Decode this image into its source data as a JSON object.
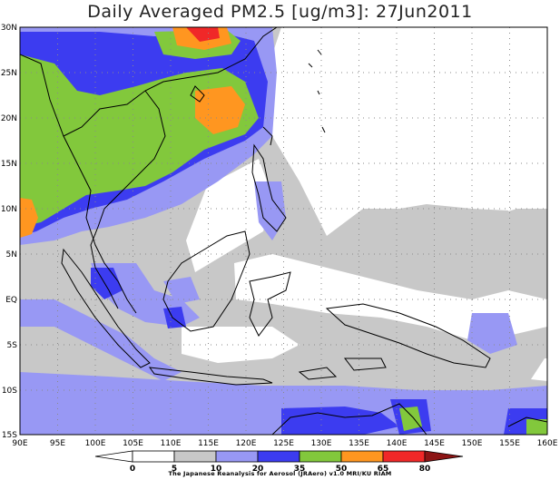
{
  "title": "Daily Averaged PM2.5 [ug/m3]: 27Jun2011",
  "map": {
    "lon_ticks": [
      "90E",
      "95E",
      "100E",
      "105E",
      "110E",
      "115E",
      "120E",
      "125E",
      "130E",
      "135E",
      "140E",
      "145E",
      "150E",
      "155E",
      "160E"
    ],
    "lat_ticks": [
      "30N",
      "25N",
      "20N",
      "15N",
      "10N",
      "5N",
      "EQ",
      "5S",
      "10S",
      "15S"
    ],
    "lon_range": [
      90,
      160
    ],
    "lat_range": [
      -15,
      30
    ],
    "grid": true
  },
  "legend": {
    "levels": [
      "0",
      "5",
      "10",
      "20",
      "35",
      "50",
      "65",
      "80"
    ],
    "colors": [
      "#ffffff",
      "#c8c8c8",
      "#9898f4",
      "#3c3cf0",
      "#82c83c",
      "#ff9620",
      "#f02828",
      "#8c1414"
    ]
  },
  "credit": "The Japanese Reanalysis for Aerosol (JRAero) v1.0 MRI/KU RIAM"
}
